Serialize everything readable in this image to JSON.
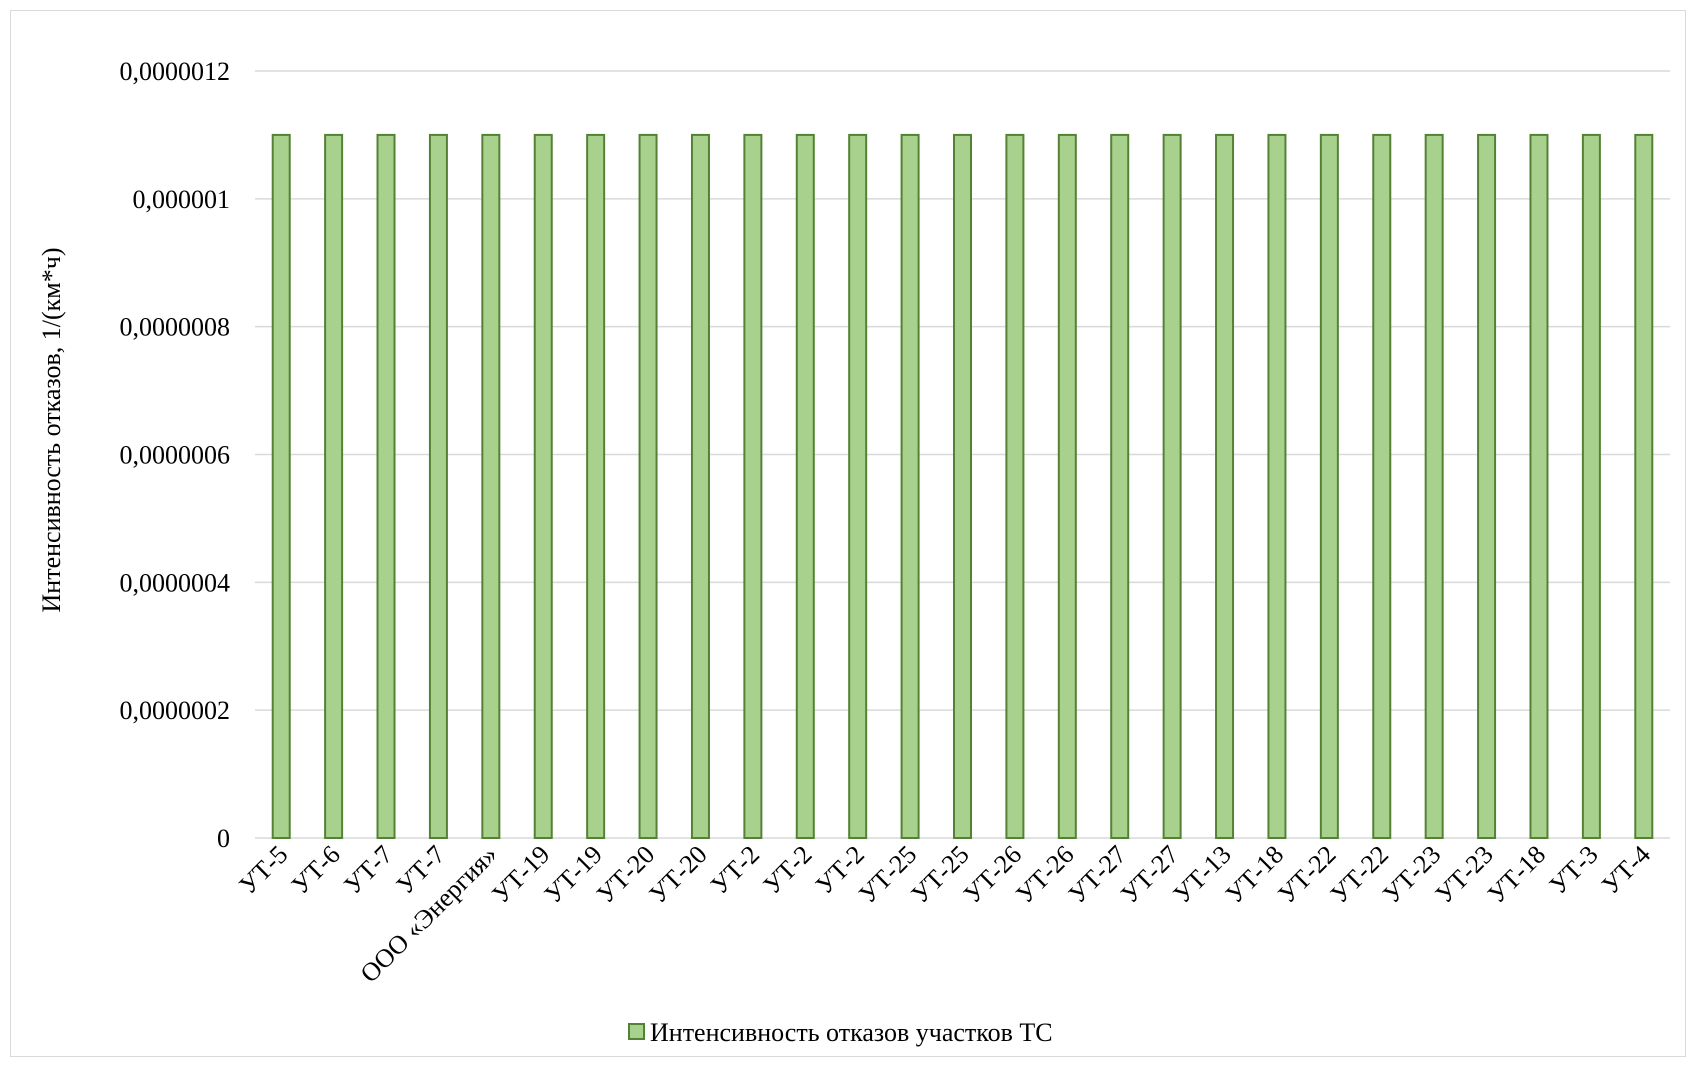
{
  "chart_data": {
    "type": "bar",
    "ylabel": "Интенсивность  отказов, 1/(км*ч)",
    "ylim": [
      0,
      1.2e-06
    ],
    "y_ticks": [
      "0",
      "0,0000002",
      "0,0000004",
      "0,0000006",
      "0,0000008",
      "0,000001",
      "0,0000012"
    ],
    "y_tick_values": [
      0,
      2e-07,
      4e-07,
      6e-07,
      8e-07,
      1e-06,
      1.2e-06
    ],
    "grid": true,
    "legend_position": "bottom",
    "categories": [
      "УТ-5",
      "УТ-6",
      "УТ-7",
      "УТ-7",
      "ООО «Энергия»",
      "УТ-19",
      "УТ-19",
      "УТ-20",
      "УТ-20",
      "УТ-2",
      "УТ-2",
      "УТ-2",
      "УТ-25",
      "УТ-25",
      "УТ-26",
      "УТ-26",
      "УТ-27",
      "УТ-27",
      "УТ-13",
      "УТ-18",
      "УТ-22",
      "УТ-22",
      "УТ-23",
      "УТ-23",
      "УТ-18",
      "УТ-3",
      "УТ-4"
    ],
    "series": [
      {
        "name": "Интенсивность  отказов участков ТС",
        "color": "#a9d18e",
        "stroke": "#548235",
        "values": [
          1.1e-06,
          1.1e-06,
          1.1e-06,
          1.1e-06,
          1.1e-06,
          1.1e-06,
          1.1e-06,
          1.1e-06,
          1.1e-06,
          1.1e-06,
          1.1e-06,
          1.1e-06,
          1.1e-06,
          1.1e-06,
          1.1e-06,
          1.1e-06,
          1.1e-06,
          1.1e-06,
          1.1e-06,
          1.1e-06,
          1.1e-06,
          1.1e-06,
          1.1e-06,
          1.1e-06,
          1.1e-06,
          1.1e-06,
          1.1e-06
        ]
      }
    ]
  }
}
